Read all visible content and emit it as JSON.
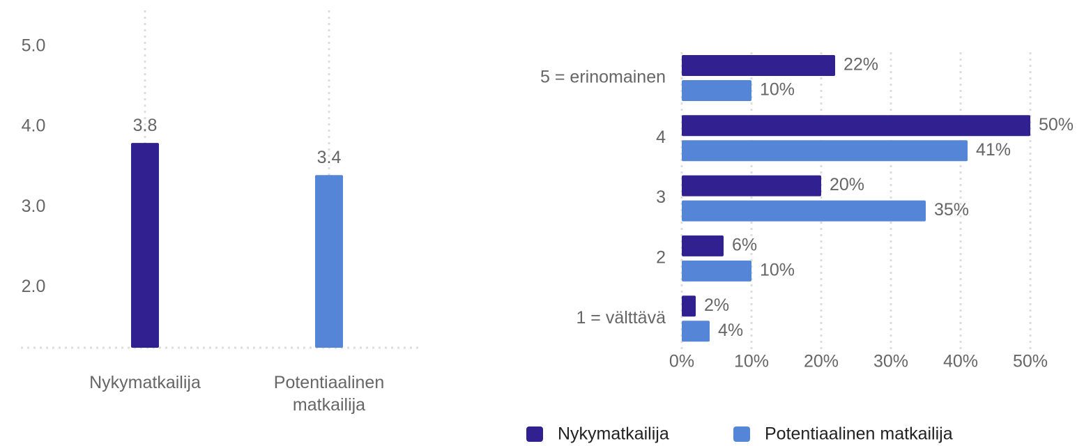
{
  "chart_data": [
    {
      "type": "bar",
      "categories": [
        "Nykymatkailija",
        "Potentiaalinen matkailija"
      ],
      "values": [
        3.8,
        3.4
      ],
      "colors": [
        "#31208f",
        "#5585d6"
      ],
      "ylim": [
        1.25,
        5.45
      ],
      "yticks": [
        {
          "value": 2,
          "label": "2.0"
        },
        {
          "value": 3,
          "label": "3.0"
        },
        {
          "value": 4,
          "label": "4.0"
        },
        {
          "value": 5,
          "label": "5.0"
        }
      ],
      "grid": true
    },
    {
      "type": "bar",
      "orientation": "horizontal",
      "categories": [
        "5 = erinomainen",
        "4",
        "3",
        "2",
        "1 = välttävä"
      ],
      "series": [
        {
          "name": "Nykymatkailija",
          "color": "#31208f",
          "values": [
            22,
            50,
            20,
            6,
            2
          ],
          "value_labels": [
            "22%",
            "50%",
            "20%",
            "6%",
            "2%"
          ]
        },
        {
          "name": "Potentiaalinen matkailija",
          "color": "#5585d6",
          "values": [
            10,
            41,
            35,
            10,
            4
          ],
          "value_labels": [
            "10%",
            "41%",
            "35%",
            "10%",
            "4%"
          ]
        }
      ],
      "xlim": [
        0,
        50
      ],
      "xticks": [
        {
          "value": 0,
          "label": "0%"
        },
        {
          "value": 10,
          "label": "10%"
        },
        {
          "value": 20,
          "label": "20%"
        },
        {
          "value": 30,
          "label": "30%"
        },
        {
          "value": 40,
          "label": "40%"
        },
        {
          "value": 50,
          "label": "50%"
        }
      ],
      "grid": true,
      "legend": "bottom"
    }
  ]
}
